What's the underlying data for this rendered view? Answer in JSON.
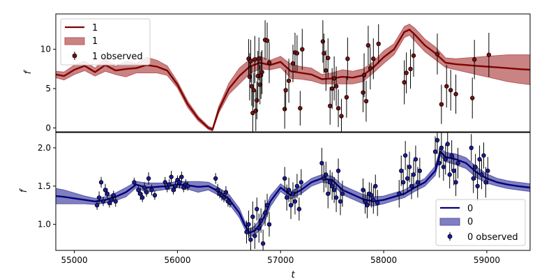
{
  "chart_data": [
    {
      "type": "line",
      "panel": "top",
      "ylabel": "f",
      "xlabel": "",
      "xlim": [
        54820,
        59420
      ],
      "ylim": [
        -0.5,
        14.5
      ],
      "xticks": [
        55000,
        56000,
        57000,
        58000,
        59000
      ],
      "yticks": [
        0,
        5,
        10
      ],
      "show_xtick_labels": false,
      "grid": false,
      "legend_position": "top-left",
      "legend": {
        "line": "1",
        "band": "1",
        "observed": "1 observed"
      },
      "colors": {
        "line": "#7f0000",
        "band": "#b85a5a",
        "marker": "#7a1010",
        "errorbar": "#000000"
      },
      "model": {
        "t": [
          54820,
          54900,
          55000,
          55100,
          55200,
          55300,
          55400,
          55500,
          55600,
          55700,
          55800,
          55900,
          56000,
          56100,
          56200,
          56300,
          56340,
          56400,
          56500,
          56600,
          56700,
          56800,
          56900,
          57000,
          57100,
          57200,
          57300,
          57400,
          57500,
          57600,
          57700,
          57800,
          57900,
          58000,
          58100,
          58200,
          58250,
          58300,
          58400,
          58500,
          58600,
          58700,
          58800,
          58900,
          59000,
          59100,
          59200,
          59300,
          59420
        ],
        "y": [
          6.8,
          6.6,
          7.4,
          7.9,
          7.1,
          8.0,
          7.3,
          7.5,
          7.6,
          8.0,
          7.8,
          7.3,
          5.5,
          3.0,
          1.2,
          0.0,
          -0.2,
          2.3,
          5.0,
          6.6,
          7.8,
          8.3,
          8.0,
          8.4,
          7.2,
          7.0,
          6.8,
          6.2,
          6.3,
          6.5,
          6.4,
          6.7,
          7.7,
          9.0,
          10.0,
          12.2,
          12.5,
          11.9,
          10.5,
          9.5,
          8.3,
          8.1,
          8.0,
          7.9,
          7.8,
          7.7,
          7.6,
          7.5,
          7.4
        ],
        "band": [
          0.4,
          0.5,
          0.6,
          0.6,
          0.5,
          0.8,
          0.5,
          1.0,
          0.6,
          1.0,
          0.8,
          0.6,
          0.4,
          0.4,
          0.3,
          0.2,
          0.2,
          0.4,
          0.7,
          1.0,
          0.9,
          0.8,
          0.6,
          0.7,
          0.9,
          0.8,
          0.8,
          0.6,
          0.7,
          0.9,
          0.8,
          0.8,
          0.7,
          0.8,
          0.7,
          0.7,
          0.7,
          0.8,
          0.8,
          0.8,
          0.6,
          0.7,
          0.9,
          1.1,
          1.3,
          1.5,
          1.7,
          1.8,
          1.9
        ]
      },
      "observed": {
        "t": [
          56690,
          56700,
          56710,
          56720,
          56730,
          56740,
          56750,
          56760,
          56770,
          56780,
          56790,
          56800,
          56810,
          56820,
          56850,
          56870,
          56890,
          57040,
          57050,
          57080,
          57120,
          57140,
          57160,
          57190,
          57210,
          57410,
          57420,
          57440,
          57460,
          57480,
          57500,
          57520,
          57540,
          57560,
          57590,
          57640,
          57650,
          57800,
          57810,
          57830,
          57850,
          57870,
          57900,
          57950,
          58200,
          58220,
          58260,
          58290,
          58520,
          58560,
          58610,
          58650,
          58700,
          58860,
          58880,
          59020
        ],
        "y": [
          8.8,
          6.5,
          8.5,
          5.3,
          1.9,
          4.8,
          8.7,
          2.2,
          3.5,
          6.6,
          8.8,
          5.5,
          6.7,
          7.1,
          11.2,
          11.1,
          8.3,
          2.4,
          4.8,
          6.0,
          8.2,
          9.6,
          9.5,
          2.5,
          10.0,
          11.0,
          9.5,
          7.3,
          8.9,
          2.8,
          5.0,
          6.3,
          5.3,
          2.5,
          1.5,
          3.9,
          8.8,
          4.5,
          6.7,
          3.4,
          10.5,
          7.6,
          8.8,
          10.7,
          5.8,
          7.0,
          7.5,
          9.2,
          9.4,
          3.0,
          5.3,
          4.8,
          4.3,
          3.8,
          8.7,
          9.3
        ],
        "err": [
          2.5,
          3.0,
          2.7,
          2.5,
          2.8,
          2.2,
          3.0,
          2.6,
          2.4,
          3.2,
          2.7,
          2.5,
          3.0,
          2.8,
          2.5,
          2.3,
          2.6,
          2.5,
          2.6,
          2.8,
          2.4,
          2.5,
          2.3,
          2.2,
          2.6,
          2.7,
          2.5,
          2.6,
          2.5,
          2.4,
          2.6,
          2.8,
          2.5,
          2.4,
          2.2,
          2.6,
          2.7,
          2.5,
          2.8,
          2.6,
          2.5,
          2.7,
          2.6,
          2.5,
          2.8,
          2.6,
          2.5,
          2.7,
          2.6,
          2.5,
          2.7,
          2.6,
          2.5,
          2.6,
          2.5,
          2.8
        ]
      }
    },
    {
      "type": "line",
      "panel": "bottom",
      "ylabel": "f",
      "xlabel": "t",
      "xlim": [
        54820,
        59420
      ],
      "ylim": [
        0.66,
        2.2
      ],
      "xticks": [
        55000,
        56000,
        57000,
        58000,
        59000
      ],
      "yticks": [
        1.0,
        1.5,
        2.0
      ],
      "show_xtick_labels": true,
      "grid": false,
      "legend_position": "bottom-right",
      "legend": {
        "line": "0",
        "band": "0",
        "observed": "0 observed"
      },
      "colors": {
        "line": "#00007f",
        "band": "#5555aa",
        "marker": "#1a1aa0",
        "errorbar": "#000000"
      },
      "model": {
        "t": [
          54820,
          54900,
          55000,
          55100,
          55200,
          55300,
          55400,
          55500,
          55600,
          55700,
          55800,
          55900,
          56000,
          56100,
          56200,
          56300,
          56400,
          56500,
          56600,
          56650,
          56700,
          56750,
          56800,
          56850,
          56900,
          57000,
          57100,
          57200,
          57300,
          57400,
          57500,
          57600,
          57700,
          57800,
          57900,
          58000,
          58100,
          58200,
          58300,
          58400,
          58500,
          58550,
          58600,
          58700,
          58800,
          58900,
          59000,
          59100,
          59200,
          59300,
          59420
        ],
        "y": [
          1.37,
          1.36,
          1.34,
          1.32,
          1.3,
          1.32,
          1.36,
          1.42,
          1.52,
          1.48,
          1.49,
          1.5,
          1.52,
          1.51,
          1.49,
          1.5,
          1.43,
          1.33,
          1.15,
          1.0,
          0.89,
          0.92,
          1.0,
          1.12,
          1.3,
          1.48,
          1.38,
          1.45,
          1.55,
          1.6,
          1.58,
          1.45,
          1.39,
          1.33,
          1.3,
          1.32,
          1.36,
          1.4,
          1.48,
          1.55,
          1.7,
          1.95,
          1.88,
          1.85,
          1.8,
          1.68,
          1.6,
          1.55,
          1.52,
          1.5,
          1.48
        ],
        "band": [
          0.1,
          0.09,
          0.07,
          0.05,
          0.04,
          0.04,
          0.05,
          0.06,
          0.04,
          0.06,
          0.05,
          0.04,
          0.04,
          0.05,
          0.07,
          0.05,
          0.05,
          0.06,
          0.06,
          0.05,
          0.05,
          0.06,
          0.07,
          0.08,
          0.07,
          0.05,
          0.05,
          0.05,
          0.05,
          0.05,
          0.05,
          0.06,
          0.06,
          0.06,
          0.06,
          0.05,
          0.05,
          0.05,
          0.05,
          0.05,
          0.06,
          0.05,
          0.06,
          0.07,
          0.07,
          0.07,
          0.06,
          0.05,
          0.05,
          0.05,
          0.05
        ]
      },
      "observed": {
        "t": [
          55220,
          55240,
          55260,
          55280,
          55300,
          55320,
          55340,
          55360,
          55380,
          55400,
          55580,
          55620,
          55640,
          55660,
          55680,
          55700,
          55720,
          55750,
          55780,
          55880,
          55900,
          55920,
          55940,
          55960,
          55980,
          56000,
          56020,
          56040,
          56060,
          56080,
          56100,
          56370,
          56390,
          56410,
          56430,
          56450,
          56470,
          56490,
          56510,
          56670,
          56690,
          56710,
          56730,
          56750,
          56770,
          56790,
          56810,
          56830,
          56850,
          56870,
          56890,
          57040,
          57060,
          57080,
          57100,
          57120,
          57140,
          57160,
          57180,
          57200,
          57400,
          57420,
          57440,
          57460,
          57480,
          57500,
          57520,
          57540,
          57560,
          57580,
          57600,
          57800,
          57820,
          57840,
          57860,
          57880,
          57900,
          57920,
          57940,
          58150,
          58170,
          58190,
          58210,
          58230,
          58250,
          58270,
          58290,
          58310,
          58330,
          58350,
          58500,
          58520,
          58540,
          58560,
          58580,
          58600,
          58620,
          58640,
          58660,
          58680,
          58700,
          58720,
          58850,
          58870,
          58890,
          58910,
          58930,
          58950,
          58970,
          58990,
          59010
        ],
        "y": [
          1.25,
          1.35,
          1.55,
          1.3,
          1.45,
          1.4,
          1.28,
          1.32,
          1.38,
          1.3,
          1.55,
          1.45,
          1.4,
          1.35,
          1.48,
          1.42,
          1.6,
          1.45,
          1.38,
          1.55,
          1.48,
          1.52,
          1.62,
          1.45,
          1.5,
          1.58,
          1.55,
          1.62,
          1.48,
          1.52,
          1.5,
          1.6,
          1.45,
          1.4,
          1.38,
          1.35,
          1.42,
          1.3,
          1.28,
          0.9,
          1.0,
          0.8,
          1.1,
          0.85,
          1.2,
          0.95,
          1.05,
          0.75,
          1.15,
          1.25,
          1.0,
          1.6,
          1.35,
          1.45,
          1.25,
          1.4,
          1.3,
          1.5,
          1.2,
          1.55,
          1.8,
          1.6,
          1.65,
          1.4,
          1.55,
          1.5,
          1.45,
          1.35,
          1.7,
          1.3,
          1.4,
          1.45,
          1.3,
          1.25,
          1.4,
          1.38,
          1.32,
          1.5,
          1.28,
          1.4,
          1.7,
          1.55,
          1.9,
          1.6,
          1.75,
          1.5,
          1.65,
          1.85,
          1.55,
          1.7,
          1.95,
          2.1,
          1.8,
          2.0,
          1.75,
          1.85,
          2.05,
          1.65,
          1.9,
          1.7,
          1.55,
          1.8,
          2.0,
          1.6,
          1.75,
          1.5,
          1.85,
          1.65,
          1.9,
          1.55,
          1.7
        ],
        "err": [
          0.06,
          0.08,
          0.07,
          0.06,
          0.08,
          0.07,
          0.06,
          0.07,
          0.06,
          0.07,
          0.06,
          0.07,
          0.08,
          0.06,
          0.07,
          0.06,
          0.08,
          0.07,
          0.06,
          0.07,
          0.06,
          0.07,
          0.08,
          0.06,
          0.07,
          0.06,
          0.08,
          0.07,
          0.06,
          0.07,
          0.06,
          0.07,
          0.08,
          0.06,
          0.07,
          0.06,
          0.08,
          0.07,
          0.06,
          0.15,
          0.18,
          0.16,
          0.2,
          0.17,
          0.15,
          0.19,
          0.16,
          0.18,
          0.17,
          0.15,
          0.16,
          0.15,
          0.17,
          0.16,
          0.18,
          0.15,
          0.17,
          0.16,
          0.15,
          0.17,
          0.2,
          0.18,
          0.17,
          0.19,
          0.16,
          0.18,
          0.17,
          0.19,
          0.16,
          0.18,
          0.17,
          0.15,
          0.16,
          0.17,
          0.15,
          0.16,
          0.18,
          0.15,
          0.17,
          0.18,
          0.2,
          0.17,
          0.19,
          0.18,
          0.2,
          0.17,
          0.19,
          0.18,
          0.2,
          0.17,
          0.2,
          0.18,
          0.19,
          0.21,
          0.18,
          0.2,
          0.19,
          0.18,
          0.2,
          0.19,
          0.18,
          0.2,
          0.18,
          0.19,
          0.17,
          0.2,
          0.18,
          0.19,
          0.17,
          0.2,
          0.18
        ]
      }
    }
  ]
}
